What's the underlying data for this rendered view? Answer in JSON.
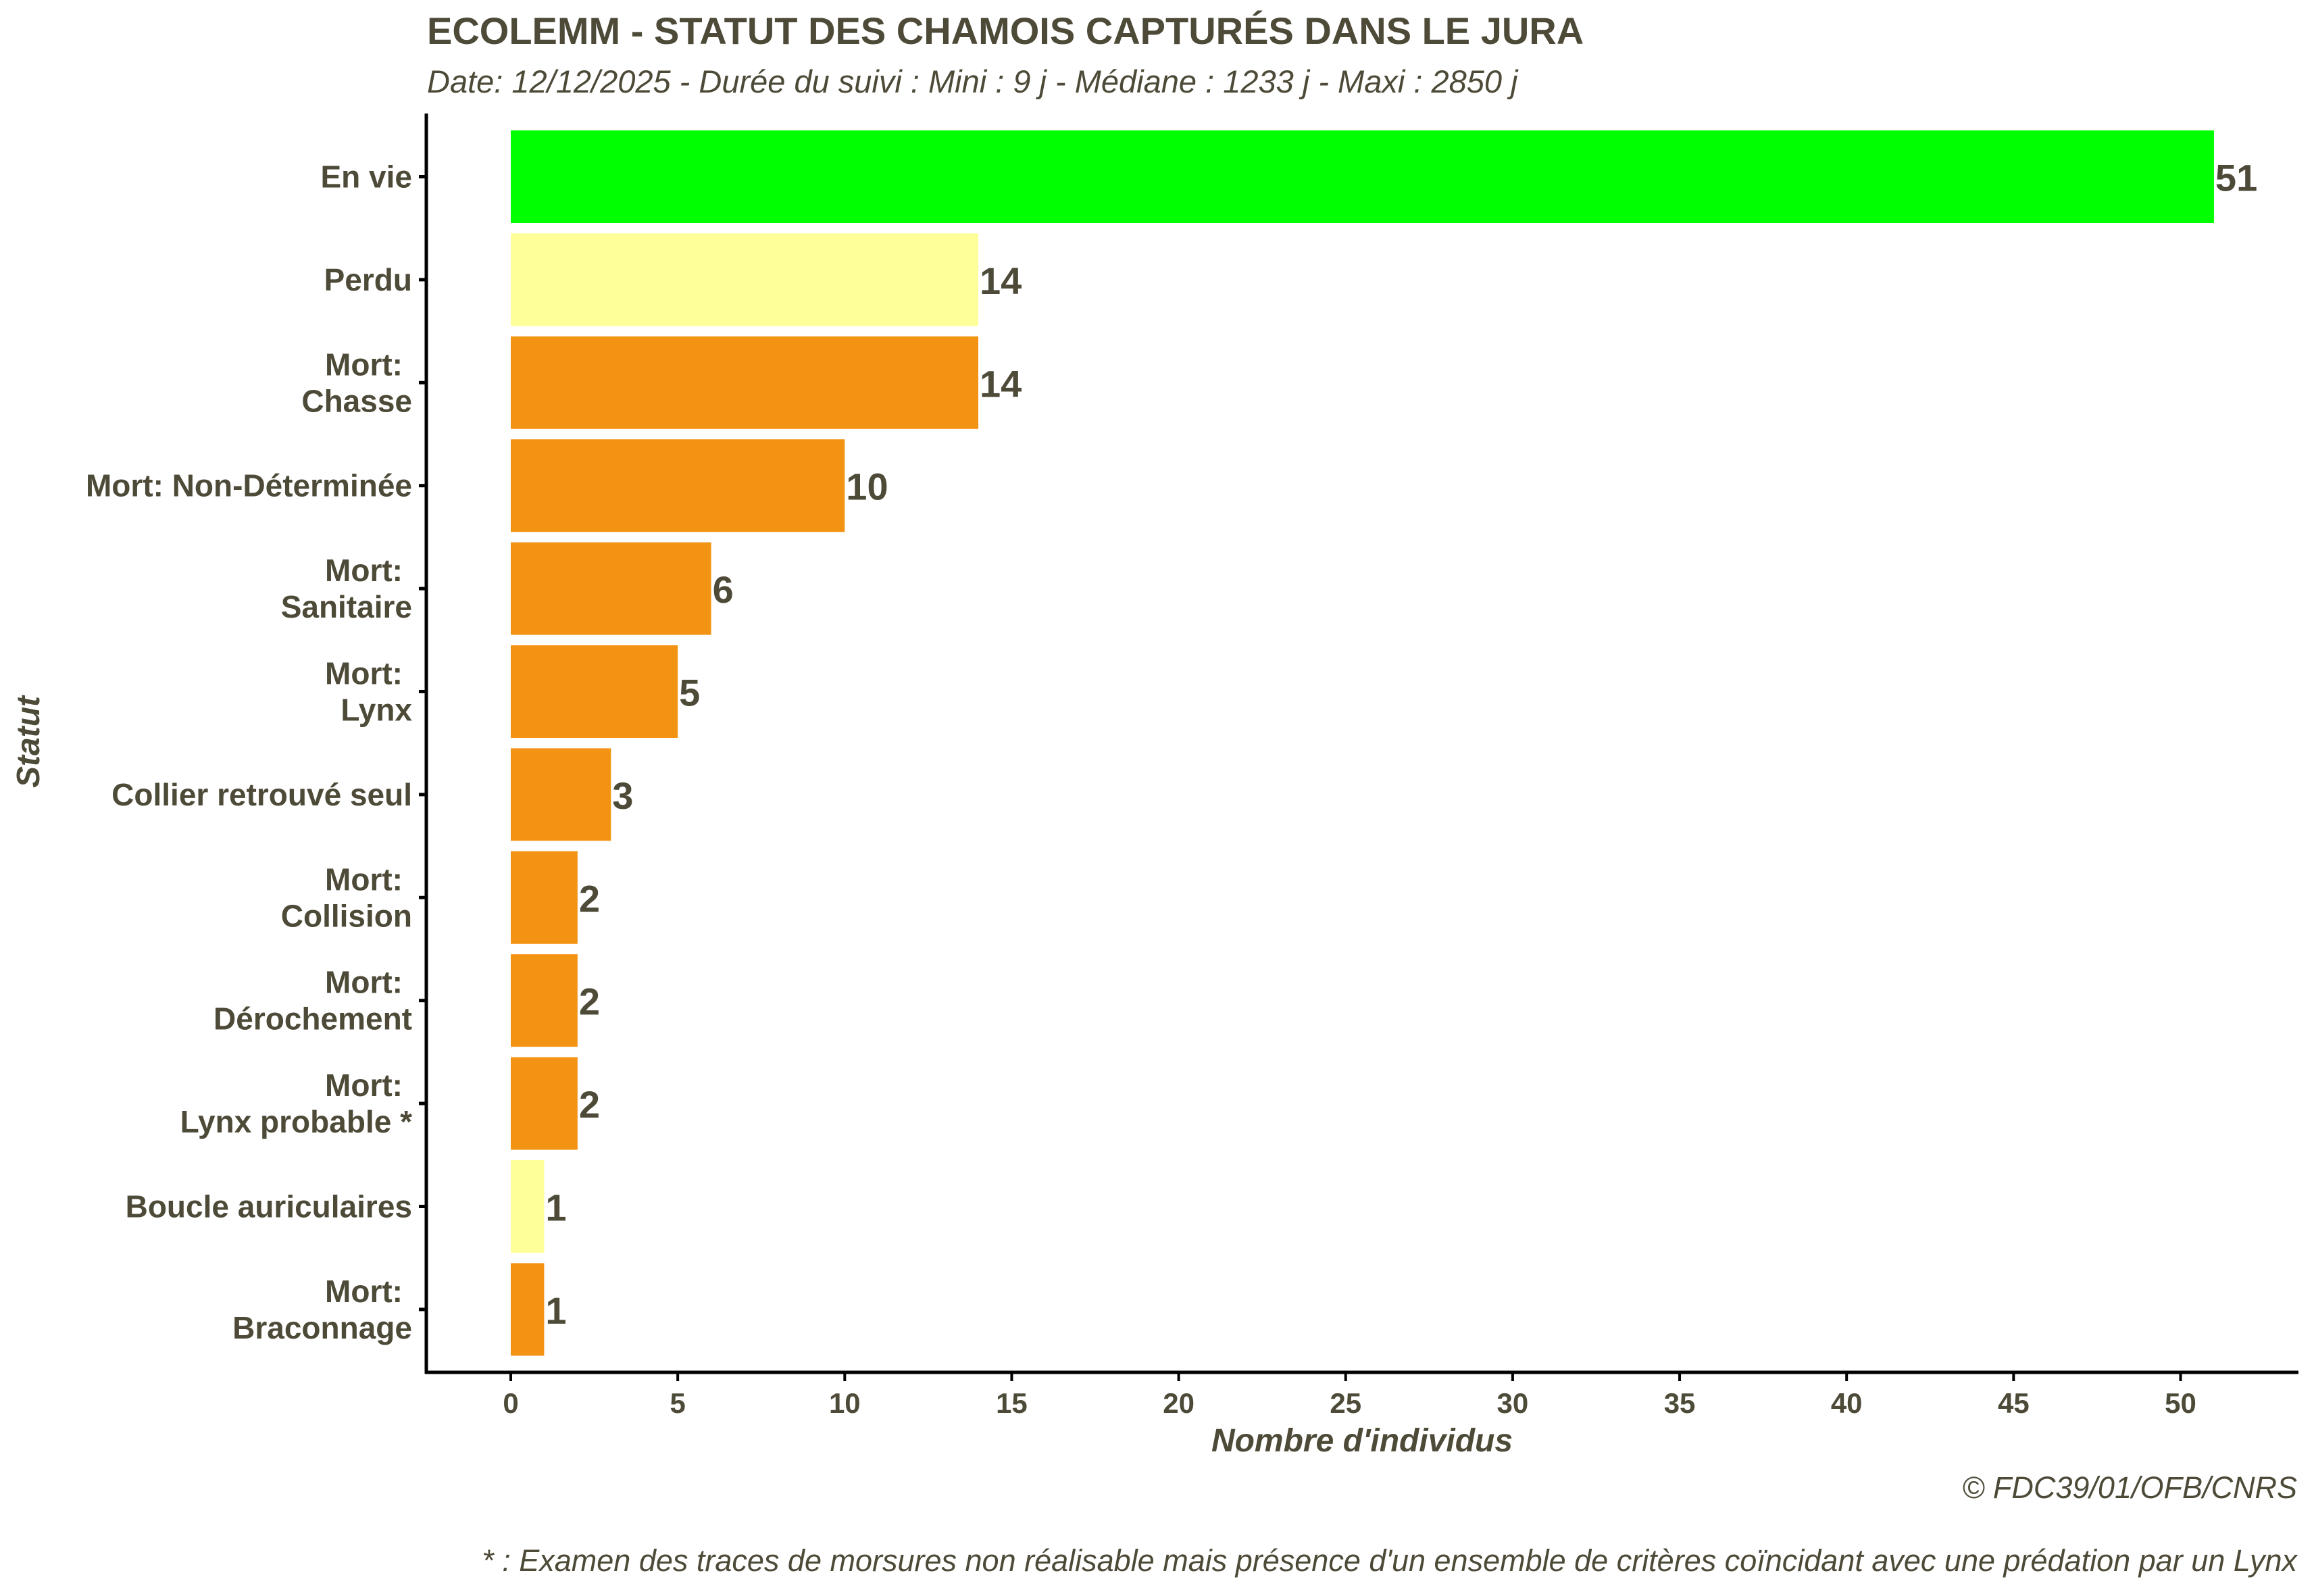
{
  "chart_data": {
    "type": "bar",
    "orientation": "horizontal",
    "title": "ECOLEMM - STATUT DES CHAMOIS CAPTURÉS DANS LE JURA",
    "subtitle": "Date: 12/12/2025 -  Durée du suivi : Mini : 9 j - Médiane : 1233 j - Maxi : 2850 j",
    "xlabel": "Nombre d'individus",
    "ylabel": "Statut",
    "xlim": [
      0,
      53
    ],
    "xticks": [
      "0",
      "5",
      "10",
      "15",
      "20",
      "25",
      "30",
      "35",
      "40",
      "45",
      "50"
    ],
    "grid": false,
    "categories": [
      {
        "lines": [
          "En vie"
        ],
        "value": 51,
        "color": "#00ff00"
      },
      {
        "lines": [
          "Perdu"
        ],
        "value": 14,
        "color": "#ffff99"
      },
      {
        "lines": [
          "Mort:",
          "Chasse"
        ],
        "value": 14,
        "color": "#f39313"
      },
      {
        "lines": [
          "Mort: Non-Déterminée"
        ],
        "value": 10,
        "color": "#f39313"
      },
      {
        "lines": [
          "Mort:",
          "Sanitaire"
        ],
        "value": 6,
        "color": "#f39313"
      },
      {
        "lines": [
          "Mort:",
          "Lynx"
        ],
        "value": 5,
        "color": "#f39313"
      },
      {
        "lines": [
          "Collier retrouvé seul"
        ],
        "value": 3,
        "color": "#f39313"
      },
      {
        "lines": [
          "Mort:",
          "Collision"
        ],
        "value": 2,
        "color": "#f39313"
      },
      {
        "lines": [
          "Mort:",
          "Dérochement"
        ],
        "value": 2,
        "color": "#f39313"
      },
      {
        "lines": [
          "Mort:",
          "Lynx probable *"
        ],
        "value": 2,
        "color": "#f39313"
      },
      {
        "lines": [
          "Boucle auriculaires"
        ],
        "value": 1,
        "color": "#ffff99"
      },
      {
        "lines": [
          "Mort:",
          "Braconnage"
        ],
        "value": 1,
        "color": "#f39313"
      }
    ],
    "value_labels": [
      "51",
      "14",
      "14",
      "10",
      "6",
      "5",
      "3",
      "2",
      "2",
      "2",
      "1",
      "1"
    ]
  },
  "caption": {
    "copyright": "© FDC39/01/OFB/CNRS",
    "footnote": "* : Examen des traces de morsures non réalisable mais présence d'un ensemble de critères coïncidant avec une prédation par un Lynx"
  },
  "colors": {
    "text": "#4d4a38",
    "axis": "#000000"
  }
}
